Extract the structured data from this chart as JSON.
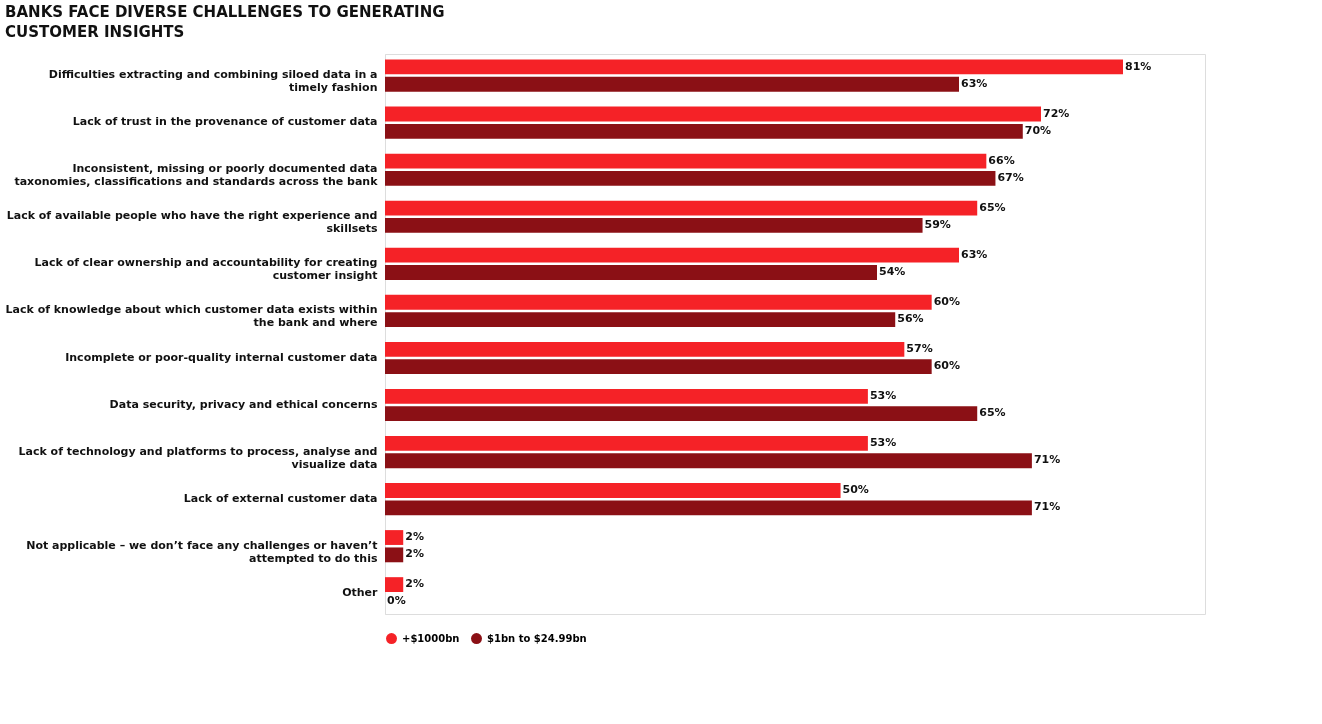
{
  "chart_data": {
    "type": "bar",
    "orientation": "horizontal",
    "title": "BANKS FACE DIVERSE CHALLENGES TO GENERATING CUSTOMER INSIGHTS",
    "categories": [
      "Difficulties extracting and combining siloed data in a timely fashion",
      "Lack of trust in the provenance of customer data",
      "Inconsistent, missing or poorly documented data taxonomies, classifications and standards across the bank",
      "Lack of available people who have the right experience and skillsets",
      "Lack of clear ownership and accountability for creating customer insight",
      "Lack of knowledge about which customer data exists within the bank and where",
      "Incomplete or poor-quality internal customer data",
      "Data security, privacy and ethical concerns",
      "Lack of technology and platforms to process, analyse and visualize data",
      "Lack of external customer data",
      "Not applicable – we don’t face any challenges or haven’t attempted to do this",
      "Other"
    ],
    "series": [
      {
        "name": "+$1000bn",
        "color": "#f52227",
        "values": [
          81,
          72,
          66,
          65,
          63,
          60,
          57,
          53,
          53,
          50,
          2,
          2
        ],
        "value_labels": [
          "81%",
          "72%",
          "66%",
          "65%",
          "63%",
          "60%",
          "57%",
          "53%",
          "53%",
          "50%",
          "2%",
          "2%"
        ]
      },
      {
        "name": "$1bn to $24.99bn",
        "color": "#8b1015",
        "values": [
          63,
          70,
          67,
          59,
          54,
          56,
          60,
          65,
          71,
          71,
          2,
          0
        ],
        "value_labels": [
          "63%",
          "70%",
          "67%",
          "59%",
          "54%",
          "56%",
          "60%",
          "65%",
          "71%",
          "71%",
          "2%",
          "0%"
        ]
      }
    ],
    "legend": "bottom",
    "grid": false
  }
}
